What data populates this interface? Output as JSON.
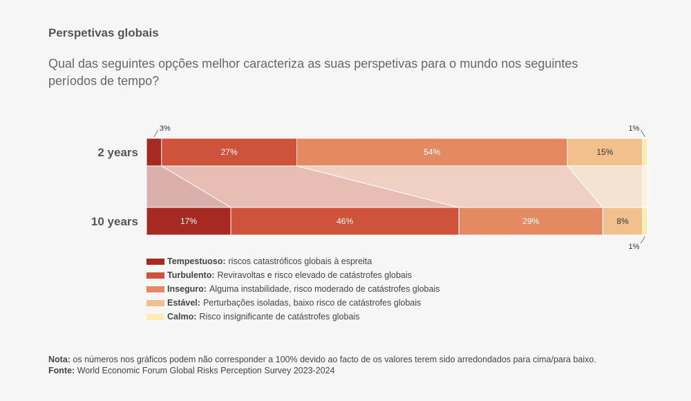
{
  "header": {
    "title": "Perspetivas globais",
    "question": "Qual das seguintes opções melhor caracteriza as suas perspetivas para o mundo nos seguintes períodos de tempo?"
  },
  "chart_data": {
    "type": "bar",
    "orientation": "horizontal",
    "stacked": true,
    "percent": true,
    "categories": [
      "2 years",
      "10 years"
    ],
    "series": [
      {
        "name": "Tempestuoso",
        "values": [
          3,
          17
        ],
        "color": "#a62a22"
      },
      {
        "name": "Turbulento",
        "values": [
          27,
          46
        ],
        "color": "#cf533a"
      },
      {
        "name": "Inseguro",
        "values": [
          54,
          29
        ],
        "color": "#e38a62"
      },
      {
        "name": "Estável",
        "values": [
          15,
          8
        ],
        "color": "#f2c08d"
      },
      {
        "name": "Calmo",
        "values": [
          1,
          1
        ],
        "color": "#fbecb2"
      }
    ],
    "data_labels": [
      [
        "3%",
        "27%",
        "54%",
        "15%",
        "1%"
      ],
      [
        "17%",
        "46%",
        "29%",
        "8%",
        "1%"
      ]
    ],
    "legend_position": "bottom-left",
    "grid": false
  },
  "legend": [
    {
      "name": "Tempestuoso:",
      "desc": "riscos catastróficos globais à espreita",
      "color": "#a62a22"
    },
    {
      "name": "Turbulento:",
      "desc": "Reviravoltas e risco elevado de catástrofes globais",
      "color": "#cf533a"
    },
    {
      "name": "Inseguro:",
      "desc": "Alguma instabilidade, risco moderado de catástrofes globais",
      "color": "#e38a62"
    },
    {
      "name": "Estável:",
      "desc": "Perturbações isoladas, baixo risco de catástrofes globais",
      "color": "#f2c08d"
    },
    {
      "name": "Calmo:",
      "desc": "Risco insignificante de catástrofes globais",
      "color": "#fbecb2"
    }
  ],
  "footer": {
    "note_label": "Nota:",
    "note_text": " os números nos gráficos podem não corresponder a 100% devido ao facto de os valores terem sido arredondados para cima/para baixo.",
    "source_label": "Fonte:",
    "source_text": " World Economic Forum Global Risks Perception Survey 2023-2024"
  }
}
